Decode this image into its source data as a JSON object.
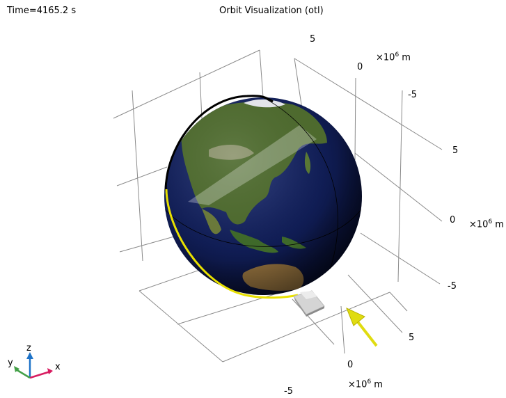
{
  "header": {
    "time_label": "Time=4165.2 s",
    "title": "Orbit Visualization (otl)"
  },
  "axes": {
    "upper_ticks": [
      "5",
      "0",
      "-5"
    ],
    "upper_unit_base": "×10",
    "upper_unit_exp": "6",
    "upper_unit_suffix": " m",
    "right_ticks": [
      "5",
      "0",
      "-5"
    ],
    "right_unit_base": "×10",
    "right_unit_exp": "6",
    "right_unit_suffix": " m",
    "bottom_ticks": [
      "5",
      "0",
      "-5"
    ],
    "bottom_unit_base": "×10",
    "bottom_unit_exp": "6",
    "bottom_unit_suffix": " m"
  },
  "triad": {
    "x": "x",
    "y": "y",
    "z": "z"
  },
  "colors": {
    "orbit_full": "#000000",
    "orbit_trail": "#e8e000",
    "velocity_arrow": "#e0dc10",
    "grid": "#8a8a8a",
    "axis_x": "#d81b60",
    "axis_y": "#43a047",
    "axis_z": "#1e73c8",
    "ocean": "#0d1a4a",
    "land": "#4e6b2e"
  }
}
